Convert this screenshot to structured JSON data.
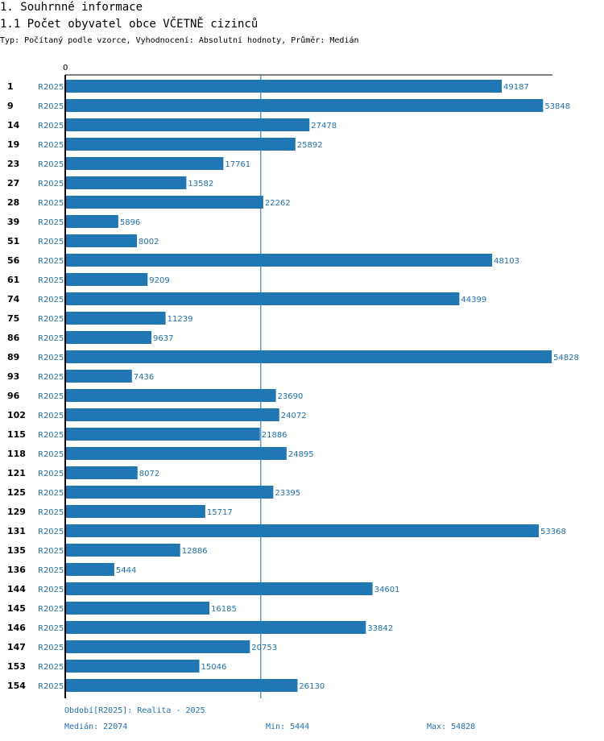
{
  "header": {
    "section_title": "1. Souhrnné informace",
    "chart_title": "1.1 Počet obyvatel obce VČETNĚ cizinců",
    "subtitle": "Typ: Počítaný podle vzorce, Vyhodnocení: Absolutní hodnoty, Průměr: Medián"
  },
  "chart_data": {
    "type": "bar",
    "orientation": "horizontal",
    "title": "1.1 Počet obyvatel obce VČETNĚ cizinců",
    "axis_zero_label": "0",
    "xlim": [
      0,
      56000
    ],
    "median_line": 22074,
    "categories": [
      "1",
      "9",
      "14",
      "19",
      "23",
      "27",
      "28",
      "39",
      "51",
      "56",
      "61",
      "74",
      "75",
      "86",
      "89",
      "93",
      "96",
      "102",
      "115",
      "118",
      "121",
      "125",
      "129",
      "131",
      "135",
      "136",
      "144",
      "145",
      "146",
      "147",
      "153",
      "154"
    ],
    "periods": [
      "R2025",
      "R2025",
      "R2025",
      "R2025",
      "R2025",
      "R2025",
      "R2025",
      "R2025",
      "R2025",
      "R2025",
      "R2025",
      "R2025",
      "R2025",
      "R2025",
      "R2025",
      "R2025",
      "R2025",
      "R2025",
      "R2025",
      "R2025",
      "R2025",
      "R2025",
      "R2025",
      "R2025",
      "R2025",
      "R2025",
      "R2025",
      "R2025",
      "R2025",
      "R2025",
      "R2025",
      "R2025"
    ],
    "values": [
      49187,
      53848,
      27478,
      25892,
      17761,
      13582,
      22262,
      5896,
      8002,
      48103,
      9209,
      44399,
      11239,
      9637,
      54828,
      7436,
      23690,
      24072,
      21886,
      24895,
      8072,
      23395,
      15717,
      53368,
      12886,
      5444,
      34601,
      16185,
      33842,
      20753,
      15046,
      26130
    ],
    "colors": {
      "bar": "#1f77b4",
      "value_text": "#1f6fb0",
      "axis": "#000000"
    }
  },
  "footer": {
    "period_legend": "Období[R2025]: Realita - 2025",
    "median": "Medián: 22074",
    "min": "Min: 5444",
    "max": "Max: 54828"
  }
}
